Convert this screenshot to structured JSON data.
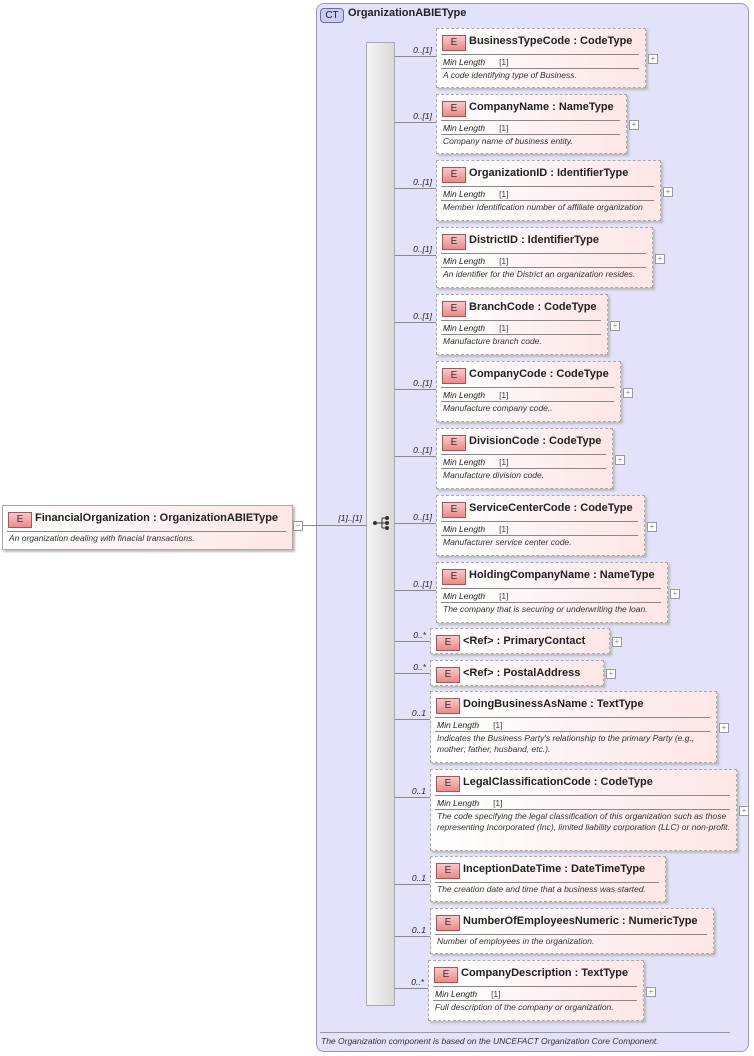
{
  "root": {
    "badge": "E",
    "title": "FinancialOrganization : OrganizationABIEType",
    "doc": "An organization dealing with finacial transactions.",
    "multiplicity": "[1]..[1]"
  },
  "complex_type": {
    "badge": "CT",
    "title": "OrganizationABIEType",
    "doc": "The Organization component is based on the UNCEFACT Organization Core Component."
  },
  "sequence": {
    "icon": "sequence-icon"
  },
  "elements": [
    {
      "title": "BusinessTypeCode : CodeType",
      "mult": "0..[1]",
      "facet": "Min Length",
      "facet_value": "[1]",
      "doc": "A code identifying type of Business."
    },
    {
      "title": "CompanyName : NameType",
      "mult": "0..[1]",
      "facet": "Min Length",
      "facet_value": "[1]",
      "doc": "Company name of business entity."
    },
    {
      "title": "OrganizationID : IdentifierType",
      "mult": "0..[1]",
      "facet": "Min Length",
      "facet_value": "[1]",
      "doc": "Member Identification number of affiliate organization"
    },
    {
      "title": "DistrictID : IdentifierType",
      "mult": "0..[1]",
      "facet": "Min Length",
      "facet_value": "[1]",
      "doc": "An identifier for the District an organization resides."
    },
    {
      "title": "BranchCode : CodeType",
      "mult": "0..[1]",
      "facet": "Min Length",
      "facet_value": "[1]",
      "doc": "Manufacture branch code."
    },
    {
      "title": "CompanyCode : CodeType",
      "mult": "0..[1]",
      "facet": "Min Length",
      "facet_value": "[1]",
      "doc": "Manufacture company code.."
    },
    {
      "title": "DivisionCode : CodeType",
      "mult": "0..[1]",
      "facet": "Min Length",
      "facet_value": "[1]",
      "doc": "Manufacture division code."
    },
    {
      "title": "ServiceCenterCode : CodeType",
      "mult": "0..[1]",
      "facet": "Min Length",
      "facet_value": "[1]",
      "doc": "Manufacturer service center code."
    },
    {
      "title": "HoldingCompanyName : NameType",
      "mult": "0..[1]",
      "facet": "Min Length",
      "facet_value": "[1]",
      "doc": "The company that is securing or underwriting the loan."
    },
    {
      "title": "<Ref>      : PrimaryContact",
      "mult": "0..*"
    },
    {
      "title": "<Ref>      : PostalAddress",
      "mult": "0..*"
    },
    {
      "title": "DoingBusinessAsName : TextType",
      "mult": "0..1",
      "facet": "Min Length",
      "facet_value": "[1]",
      "doc": "Indicates the Business Party's relationship to the primary Party (e.g., mother; father, husband, etc.)."
    },
    {
      "title": "LegalClassificationCode : CodeType",
      "mult": "0..1",
      "facet": "Min Length",
      "facet_value": "[1]",
      "doc": "The code specifying the legal classification of this organization such as those representing Incorporated (Inc), limited liability corporation (LLC) or non-profit."
    },
    {
      "title": "InceptionDateTime : DateTimeType",
      "mult": "0..1",
      "doc": "The creation date and time that a business was started."
    },
    {
      "title": "NumberOfEmployeesNumeric : NumericType",
      "mult": "0..1",
      "doc": "Number of employees in the organization."
    },
    {
      "title": "CompanyDescription : TextType",
      "mult": "0..*",
      "facet": "Min Length",
      "facet_value": "[1]",
      "doc": "Full description of the company or organization."
    }
  ]
}
